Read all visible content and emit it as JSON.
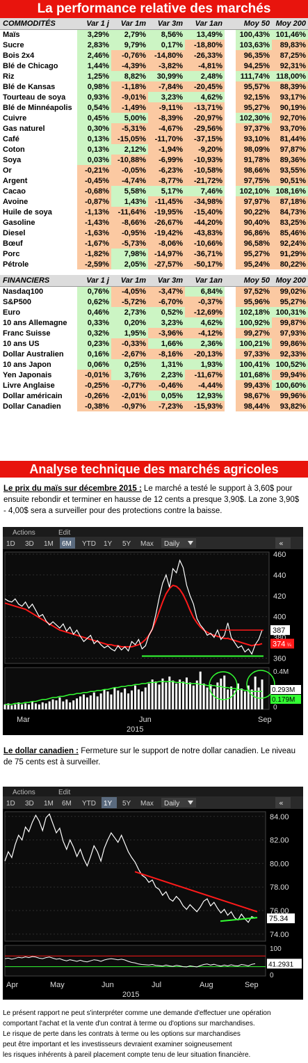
{
  "banner1": "La performance relative des marchés",
  "banner2": "Analyse technique des marchés agricoles",
  "commodities": {
    "headers": [
      "COMMODITÉS",
      "Var 1 j",
      "Var 1m",
      "Var 3m",
      "Var 1an",
      "",
      "Moy 50",
      "Moy 200"
    ],
    "rows": [
      [
        "Maïs",
        "3,29%",
        "2,79%",
        "8,56%",
        "13,49%",
        "100,43%",
        "101,46%"
      ],
      [
        "Sucre",
        "2,83%",
        "9,79%",
        "0,17%",
        "-18,80%",
        "103,63%",
        "89,83%"
      ],
      [
        "Bois 2x4",
        "2,46%",
        "-0,76%",
        "-14,80%",
        "-26,33%",
        "96,35%",
        "87,25%"
      ],
      [
        "Blé de Chicago",
        "1,44%",
        "-4,39%",
        "-3,82%",
        "-4,81%",
        "94,25%",
        "92,31%"
      ],
      [
        "Riz",
        "1,25%",
        "8,82%",
        "30,99%",
        "2,48%",
        "111,74%",
        "118,00%"
      ],
      [
        "Blé de Kansas",
        "0,98%",
        "-1,18%",
        "-7,84%",
        "-20,45%",
        "95,57%",
        "88,39%"
      ],
      [
        "Tourteau de soya",
        "0,93%",
        "-9,01%",
        "3,23%",
        "4,62%",
        "92,15%",
        "93,17%"
      ],
      [
        "Blé de Minnéapolis",
        "0,54%",
        "-1,49%",
        "-9,11%",
        "-13,71%",
        "95,27%",
        "90,19%"
      ],
      [
        "Cuivre",
        "0,45%",
        "5,00%",
        "-8,39%",
        "-20,97%",
        "102,30%",
        "92,70%"
      ],
      [
        "Gas naturel",
        "0,30%",
        "-5,31%",
        "-4,67%",
        "-29,56%",
        "97,37%",
        "93,70%"
      ],
      [
        "Café",
        "0,13%",
        "-15,05%",
        "-11,70%",
        "-37,15%",
        "93,10%",
        "81,44%"
      ],
      [
        "Coton",
        "0,13%",
        "2,12%",
        "-1,94%",
        "-9,20%",
        "98,09%",
        "97,87%"
      ],
      [
        "Soya",
        "0,03%",
        "-10,88%",
        "-6,99%",
        "-10,93%",
        "91,78%",
        "89,36%"
      ],
      [
        "Or",
        "-0,21%",
        "-0,05%",
        "-6,23%",
        "-10,58%",
        "98,66%",
        "93,55%"
      ],
      [
        "Argent",
        "-0,45%",
        "-4,74%",
        "-8,77%",
        "-21,72%",
        "97,75%",
        "90,51%"
      ],
      [
        "Cacao",
        "-0,68%",
        "5,58%",
        "5,17%",
        "7,46%",
        "102,10%",
        "108,16%"
      ],
      [
        "Avoine",
        "-0,87%",
        "1,43%",
        "-11,45%",
        "-34,98%",
        "97,97%",
        "87,18%"
      ],
      [
        "Huile de soya",
        "-1,13%",
        "-11,64%",
        "-19,95%",
        "-15,40%",
        "90,22%",
        "84,73%"
      ],
      [
        "Gasoline",
        "-1,43%",
        "-8,66%",
        "-26,67%",
        "-44,20%",
        "90,40%",
        "83,25%"
      ],
      [
        "Diesel",
        "-1,63%",
        "-0,95%",
        "-19,42%",
        "-43,83%",
        "96,86%",
        "85,46%"
      ],
      [
        "Bœuf",
        "-1,67%",
        "-5,73%",
        "-8,06%",
        "-10,66%",
        "96,58%",
        "92,24%"
      ],
      [
        "Porc",
        "-1,82%",
        "7,98%",
        "-14,97%",
        "-36,71%",
        "95,27%",
        "91,29%"
      ],
      [
        "Pétrole",
        "-2,59%",
        "2,05%",
        "-27,57%",
        "-50,17%",
        "95,24%",
        "80,22%"
      ]
    ]
  },
  "financials": {
    "headers": [
      "FINANCIERS",
      "Var 1 j",
      "Var 1m",
      "Var 3m",
      "Var 1an",
      "",
      "Moy 50",
      "Moy 200"
    ],
    "rows": [
      [
        "Nasdaq100",
        "0,76%",
        "-4,05%",
        "-3,47%",
        "6,84%",
        "97,52%",
        "99,02%"
      ],
      [
        "S&P500",
        "0,62%",
        "-5,72%",
        "-6,70%",
        "-0,37%",
        "95,96%",
        "95,27%"
      ],
      [
        "Euro",
        "0,46%",
        "2,73%",
        "0,52%",
        "-12,69%",
        "102,18%",
        "100,31%"
      ],
      [
        "10 ans Allemagne",
        "0,33%",
        "0,20%",
        "3,23%",
        "4,62%",
        "100,92%",
        "99,87%"
      ],
      [
        "Franc Suisse",
        "0,32%",
        "1,95%",
        "-3,96%",
        "-4,12%",
        "99,27%",
        "97,93%"
      ],
      [
        "10 ans US",
        "0,23%",
        "-0,33%",
        "1,66%",
        "2,36%",
        "100,21%",
        "99,86%"
      ],
      [
        "Dollar Australien",
        "0,16%",
        "-2,67%",
        "-8,16%",
        "-20,13%",
        "97,33%",
        "92,33%"
      ],
      [
        "10 ans Japon",
        "0,06%",
        "0,25%",
        "1,31%",
        "1,93%",
        "100,41%",
        "100,52%"
      ],
      [
        "Yen Japonais",
        "-0,01%",
        "3,76%",
        "2,23%",
        "-11,67%",
        "101,68%",
        "99,94%"
      ],
      [
        "Livre Anglaise",
        "-0,25%",
        "-0,77%",
        "-0,46%",
        "-4,44%",
        "99,43%",
        "100,60%"
      ],
      [
        "Dollar américain",
        "-0,26%",
        "-2,01%",
        "0,05%",
        "12,93%",
        "98,67%",
        "99,96%"
      ],
      [
        "Dollar Canadien",
        "-0,38%",
        "-0,97%",
        "-7,23%",
        "-15,93%",
        "98,44%",
        "93,82%"
      ]
    ]
  },
  "corn_text": {
    "heading": "Le prix du maïs sur décembre 2015 :",
    "body": " Le marché a testé le support à 3,60$ pour ensuite rebondir et terminer en hausse de 12 cents a presque 3,90$. La zone 3,90$ - 4,00$ sera a surveiller pour des protections contre la baisse."
  },
  "cad_text": {
    "heading": "Le dollar canadien :",
    "body": " Fermeture sur le support de notre dollar canadien. Le niveau de 75 cents est à surveiller."
  },
  "footer": [
    "Le présent rapport ne peut s'interpréter comme une demande d'effectuer une opération",
    "comportant l'achat et la vente d'un contrat à terme ou d'options sur marchandises.",
    "Le risque de perte dans les contrats à terme ou les options sur marchandises",
    "peut être important et les investisseurs devraient examiner soigneusement",
    "les risques inhérents à pareil placement compte tenu de leur situation financière."
  ],
  "toolbar": {
    "actions": "Actions",
    "edit": "Edit",
    "ranges": [
      "1D",
      "3D",
      "1M",
      "6M",
      "YTD",
      "1Y",
      "5Y",
      "Max"
    ],
    "daily": "Daily",
    "close_icon": "double-chevron-left-icon"
  },
  "colors": {
    "positive": "#ccf5c4",
    "negative": "#fbc9a2",
    "banner": "#e8140d",
    "price_line": "#ffffff",
    "moving_avg": "#ff1a1a",
    "support": "#33ff33",
    "volume": "#ffffff"
  },
  "chart_data": [
    {
      "type": "line",
      "x_ticks": [
        "Mar",
        "Jun",
        "Sep"
      ],
      "year_label": "2015",
      "ylim": [
        355,
        462
      ],
      "y_ticks": [
        360,
        380,
        400,
        420,
        440,
        460
      ],
      "active_range": "6M",
      "last_price": "387",
      "ma_label": "374",
      "ma_sub": "¼",
      "series": [
        {
          "values": [
            417,
            415,
            414,
            417,
            412,
            410,
            414,
            408,
            412,
            406,
            400,
            402,
            396,
            392,
            395,
            392,
            389,
            393,
            386,
            390,
            383,
            387,
            381,
            376,
            379,
            382,
            374,
            377,
            373,
            370,
            372,
            369,
            367,
            372,
            368,
            371,
            367,
            376,
            373,
            378,
            369,
            372,
            382,
            388,
            402,
            418,
            432,
            440,
            428,
            446,
            442,
            454,
            447,
            430,
            420,
            412,
            398,
            392,
            388,
            382,
            384,
            380,
            387,
            378,
            382,
            394,
            380,
            375,
            370,
            372,
            366,
            369,
            364,
            373,
            378,
            387
          ]
        },
        {
          "values": [
            413,
            412,
            411,
            410,
            409,
            408,
            407,
            405,
            403,
            401,
            399,
            397,
            395,
            393,
            391,
            389,
            387,
            386,
            385,
            384,
            383,
            382,
            381,
            380,
            379,
            378,
            377,
            376,
            375,
            374,
            373,
            373,
            372,
            372,
            371,
            371,
            371,
            371,
            372,
            373,
            375,
            378,
            382,
            388,
            396,
            405,
            414,
            422,
            427,
            430,
            429,
            426,
            421,
            414,
            406,
            399,
            394,
            390,
            387,
            385,
            383,
            382,
            381,
            380,
            379,
            379,
            378,
            377,
            376,
            375,
            374,
            373,
            372,
            373,
            373,
            374
          ]
        }
      ],
      "support_level": 362,
      "resistance_level": 387,
      "volume_ticks": [
        "0.4M",
        "0"
      ],
      "volume_series": [
        {
          "values": [
            0.05,
            0.06,
            0.04,
            0.05,
            0.07,
            0.05,
            0.06,
            0.05,
            0.08,
            0.06,
            0.05,
            0.07,
            0.06,
            0.08,
            0.1,
            0.09,
            0.12,
            0.08,
            0.1,
            0.07,
            0.09,
            0.11,
            0.13,
            0.15,
            0.12,
            0.14,
            0.17,
            0.13,
            0.16,
            0.2,
            0.18,
            0.15,
            0.22,
            0.19,
            0.17,
            0.21,
            0.16,
            0.19,
            0.24,
            0.2,
            0.18,
            0.22,
            0.26,
            0.3,
            0.28,
            0.25,
            0.31,
            0.27,
            0.33,
            0.29,
            0.26,
            0.3,
            0.28,
            0.32,
            0.27,
            0.24,
            0.29,
            0.38,
            0.26,
            0.22,
            0.25,
            0.21,
            0.27,
            0.31,
            0.34,
            0.2,
            0.23,
            0.19,
            0.26,
            0.21,
            0.18,
            0.24,
            0.2,
            0.33,
            0.22,
            0.3
          ]
        },
        {
          "values": [
            0.05,
            0.05,
            0.05,
            0.06,
            0.06,
            0.06,
            0.07,
            0.07,
            0.08,
            0.08,
            0.09,
            0.1,
            0.1,
            0.11,
            0.12,
            0.12,
            0.13,
            0.13,
            0.14,
            0.15,
            0.15,
            0.16,
            0.16,
            0.17,
            0.17,
            0.18,
            0.18,
            0.19,
            0.19,
            0.2,
            0.2,
            0.21,
            0.22,
            0.22,
            0.23,
            0.23,
            0.24,
            0.24,
            0.25,
            0.25,
            0.26,
            0.26,
            0.27,
            0.27,
            0.27,
            0.28,
            0.28,
            0.28,
            0.28,
            0.28,
            0.27,
            0.27,
            0.27,
            0.26,
            0.26,
            0.26,
            0.26,
            0.25,
            0.25,
            0.24,
            0.24,
            0.24,
            0.23,
            0.23,
            0.22,
            0.22,
            0.21,
            0.21,
            0.2,
            0.2,
            0.19,
            0.19,
            0.18,
            0.18,
            0.18,
            0.18
          ]
        }
      ],
      "volume_labels": [
        "0.293M",
        "0.179M"
      ],
      "volume_ylim": [
        0,
        0.42
      ]
    },
    {
      "type": "line",
      "x_ticks": [
        "Apr",
        "May",
        "Jun",
        "Jul",
        "Aug",
        "Sep"
      ],
      "year_label": "2015",
      "ylim": [
        73.4,
        84.4
      ],
      "y_ticks": [
        74.0,
        76.0,
        78.0,
        80.0,
        82.0,
        84.0
      ],
      "active_range": "1Y",
      "last_price": "75.34",
      "series": [
        {
          "values": [
            80.2,
            81.0,
            80.5,
            81.6,
            82.4,
            82.0,
            83.1,
            82.7,
            83.5,
            84.1,
            83.6,
            82.8,
            83.9,
            84.2,
            83.4,
            82.6,
            83.0,
            81.9,
            81.2,
            82.0,
            81.4,
            80.6,
            81.2,
            80.4,
            79.8,
            80.6,
            81.5,
            81.0,
            80.2,
            81.3,
            82.0,
            82.6,
            82.2,
            81.8,
            82.4,
            81.7,
            81.0,
            80.5,
            80.1,
            79.5,
            79.0,
            78.8,
            78.4,
            78.6,
            78.0,
            77.8,
            77.3,
            77.6,
            77.0,
            76.8,
            77.2,
            76.9,
            76.4,
            76.1,
            76.5,
            76.2,
            75.9,
            76.3,
            76.8,
            77.0,
            76.4,
            76.7,
            76.2,
            75.8,
            76.1,
            75.6,
            75.9,
            75.4,
            75.2,
            75.7,
            75.3,
            75.0,
            75.5,
            75.34
          ]
        }
      ],
      "trend_line": [
        79.3,
        75.9
      ],
      "support_line": [
        75.1,
        75.4
      ],
      "osc_ticks": [
        "100",
        "0"
      ],
      "osc_value": "41.2931",
      "osc_ylim": [
        -5,
        110
      ],
      "osc_levels": [
        70,
        30
      ],
      "osc_series": [
        {
          "values": [
            60,
            62,
            58,
            61,
            65,
            63,
            67,
            64,
            68,
            66,
            62,
            60,
            64,
            66,
            62,
            58,
            60,
            55,
            52,
            56,
            53,
            50,
            54,
            50,
            48,
            52,
            56,
            54,
            50,
            55,
            58,
            60,
            58,
            56,
            58,
            55,
            50,
            46,
            44,
            40,
            38,
            37,
            36,
            38,
            35,
            34,
            32,
            36,
            33,
            31,
            35,
            33,
            30,
            29,
            33,
            31,
            29,
            34,
            38,
            40,
            36,
            39,
            35,
            32,
            36,
            33,
            37,
            34,
            33,
            38,
            36,
            33,
            39,
            41
          ]
        }
      ]
    }
  ]
}
